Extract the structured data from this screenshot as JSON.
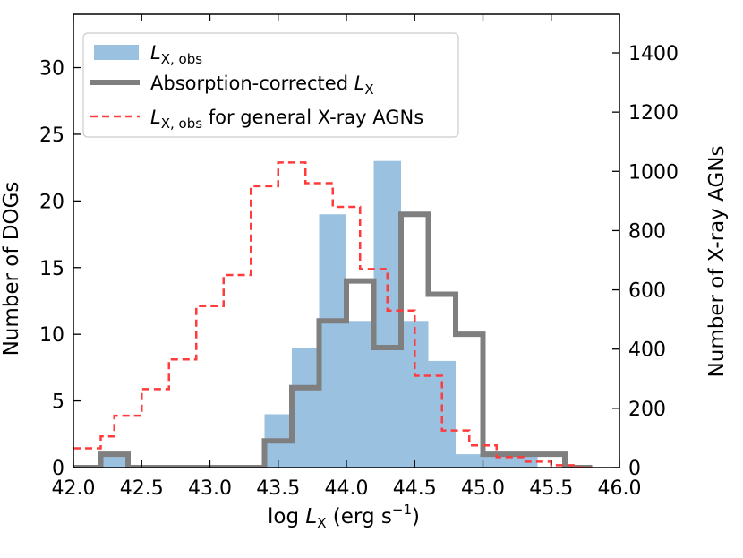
{
  "chart_data": {
    "type": "histogram",
    "xlabel": {
      "prefix": "log ",
      "var": "L",
      "sub": "X",
      "units": " (erg s",
      "exp": "−1",
      "close": ")"
    },
    "ylabel_left": "Number of DOGs",
    "ylabel_right": "Number of X-ray AGNs",
    "xlim": [
      42.0,
      46.0
    ],
    "ylim_left": [
      0,
      34
    ],
    "ylim_right": [
      0,
      1530
    ],
    "x_ticks": [
      "42.0",
      "42.5",
      "43.0",
      "43.5",
      "44.0",
      "44.5",
      "45.0",
      "45.5",
      "46.0"
    ],
    "x_tick_values": [
      42.0,
      42.5,
      43.0,
      43.5,
      44.0,
      44.5,
      45.0,
      45.5,
      46.0
    ],
    "y_left_ticks": [
      "0",
      "5",
      "10",
      "15",
      "20",
      "25",
      "30"
    ],
    "y_left_tick_values": [
      0,
      5,
      10,
      15,
      20,
      25,
      30
    ],
    "y_right_ticks": [
      "0",
      "200",
      "400",
      "600",
      "800",
      "1000",
      "1200",
      "1400"
    ],
    "y_right_tick_values": [
      0,
      200,
      400,
      600,
      800,
      1000,
      1200,
      1400
    ],
    "series": [
      {
        "name": "L_X,obs",
        "legend": {
          "var": "L",
          "sub": "X, obs",
          "rest": ""
        },
        "style": "filled",
        "axis": "left",
        "color": "#9bc1e0",
        "bin_width": 0.2,
        "bins_left": [
          42.2,
          43.4,
          43.6,
          43.8,
          44.0,
          44.2,
          44.4,
          44.6,
          44.8,
          45.0,
          45.2
        ],
        "values": [
          1,
          4,
          9,
          19,
          11,
          23,
          11,
          8,
          1,
          1,
          1
        ]
      },
      {
        "name": "Absorption-corrected L_X",
        "legend": {
          "var": "",
          "sub": "",
          "rest": "Absorption-corrected ",
          "var2": "L",
          "sub2": "X"
        },
        "style": "step-thick",
        "axis": "left",
        "color": "#7f7f7f",
        "bin_width": 0.2,
        "bins_left": [
          42.0,
          42.2,
          42.4,
          42.6,
          42.8,
          43.0,
          43.2,
          43.4,
          43.6,
          43.8,
          44.0,
          44.2,
          44.4,
          44.6,
          44.8,
          45.0,
          45.2,
          45.4,
          45.6
        ],
        "values": [
          0,
          1,
          0,
          0,
          0,
          0,
          0,
          2,
          6,
          11,
          14,
          9,
          19,
          13,
          10,
          1,
          1,
          1,
          0
        ]
      },
      {
        "name": "L_X,obs for general X-ray AGNs",
        "legend": {
          "var": "L",
          "sub": "X, obs",
          "rest": " for general X-ray AGNs"
        },
        "style": "step-dashed",
        "axis": "right",
        "color": "#ff3b3b",
        "bin_width": 0.1,
        "bins_left": [
          42.0,
          42.1,
          42.2,
          42.3,
          42.4,
          42.5,
          42.6,
          42.7,
          42.8,
          42.9,
          43.0,
          43.1,
          43.2,
          43.3,
          43.4,
          43.5,
          43.6,
          43.7,
          43.8,
          43.9,
          44.0,
          44.1,
          44.2,
          44.3,
          44.4,
          44.5,
          44.6,
          44.7,
          44.8,
          44.9,
          45.0,
          45.1,
          45.2,
          45.3,
          45.4,
          45.5,
          45.6,
          45.7
        ],
        "values": [
          65,
          65,
          105,
          175,
          175,
          265,
          265,
          365,
          365,
          545,
          545,
          650,
          650,
          950,
          950,
          1030,
          1030,
          960,
          960,
          880,
          880,
          670,
          670,
          530,
          530,
          310,
          310,
          125,
          125,
          75,
          75,
          35,
          35,
          20,
          20,
          8,
          8,
          0
        ]
      }
    ]
  }
}
